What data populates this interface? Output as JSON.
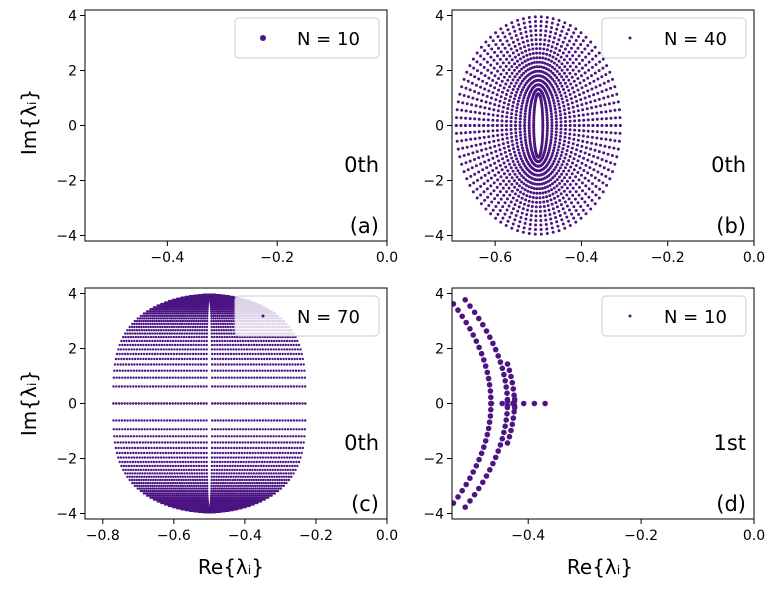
{
  "figure": {
    "marker_color": "#4b1583",
    "y_axis_label": "Im{λᵢ}",
    "x_axis_label": "Re{λᵢ}"
  },
  "chart_data": [
    {
      "type": "scatter",
      "series": [
        {
          "name": "N = 10",
          "N": 10,
          "order": 0
        }
      ],
      "legend_label": "N = 10",
      "legend_position": "top-right",
      "order_label": "0th",
      "panel_label": "(a)",
      "xlim": [
        -0.55,
        0.0
      ],
      "ylim": [
        -4.2,
        4.2
      ],
      "xticks": [
        "−0.4",
        "−0.2",
        "0.0"
      ],
      "xtick_values": [
        -0.4,
        -0.2,
        0.0
      ],
      "yticks": [
        "4",
        "2",
        "0",
        "−2",
        "−4"
      ],
      "ytick_values": [
        4,
        2,
        0,
        -2,
        -4
      ],
      "show_xlabel": false,
      "show_ylabel": true,
      "generator": {
        "kind": "zigzag",
        "x_center": -0.46,
        "x_left": -0.5,
        "amplitude": 0.055,
        "y_max": 3.85
      }
    },
    {
      "type": "scatter",
      "series": [
        {
          "name": "N = 40",
          "N": 40,
          "order": 0
        }
      ],
      "legend_label": "N = 40",
      "legend_position": "top-right",
      "order_label": "0th",
      "panel_label": "(b)",
      "xlim": [
        -0.7,
        0.0
      ],
      "ylim": [
        -4.2,
        4.2
      ],
      "xticks": [
        "−0.6",
        "−0.4",
        "−0.2",
        "0.0"
      ],
      "xtick_values": [
        -0.6,
        -0.4,
        -0.2,
        0.0
      ],
      "yticks": [
        "4",
        "2",
        "0",
        "−2",
        "−4"
      ],
      "ytick_values": [
        4,
        2,
        0,
        -2,
        -4
      ],
      "show_xlabel": false,
      "show_ylabel": false,
      "generator": {
        "kind": "lobes",
        "center": -0.5,
        "x_min": -0.67,
        "x_max": -0.29,
        "y_max": 3.95,
        "rings": 18,
        "points_per_ring": 44
      }
    },
    {
      "type": "scatter",
      "series": [
        {
          "name": "N = 70",
          "N": 70,
          "order": 0
        }
      ],
      "legend_label": "N = 70",
      "legend_position": "top-right",
      "order_label": "0th",
      "panel_label": "(c)",
      "xlim": [
        -0.85,
        0.0
      ],
      "ylim": [
        -4.2,
        4.2
      ],
      "xticks": [
        "−0.8",
        "−0.6",
        "−0.4",
        "−0.2",
        "0.0"
      ],
      "xtick_values": [
        -0.8,
        -0.6,
        -0.4,
        -0.2,
        0.0
      ],
      "yticks": [
        "4",
        "2",
        "0",
        "−2",
        "−4"
      ],
      "ytick_values": [
        4,
        2,
        0,
        -2,
        -4
      ],
      "show_xlabel": true,
      "show_ylabel": true,
      "generator": {
        "kind": "disc",
        "center": -0.5,
        "x_min": -0.76,
        "x_max": -0.22,
        "y_max": 3.95
      }
    },
    {
      "type": "scatter",
      "series": [
        {
          "name": "N = 10",
          "N": 10,
          "order": 1
        }
      ],
      "legend_label": "N = 10",
      "legend_position": "top-right",
      "order_label": "1st",
      "panel_label": "(d)",
      "xlim": [
        -0.535,
        0.0
      ],
      "ylim": [
        -4.2,
        4.2
      ],
      "xticks": [
        "−0.4",
        "−0.2",
        "0.0"
      ],
      "xtick_values": [
        -0.4,
        -0.2,
        0.0
      ],
      "yticks": [
        "4",
        "2",
        "0",
        "−2",
        "−4"
      ],
      "ytick_values": [
        4,
        2,
        0,
        -2,
        -4
      ],
      "show_xlabel": true,
      "show_ylabel": false,
      "generator": {
        "kind": "zigzag-double",
        "x_center": -0.445,
        "x_left": -0.52,
        "amplitude": 0.06,
        "y_max": 3.85,
        "tail_x": -0.37
      }
    }
  ]
}
